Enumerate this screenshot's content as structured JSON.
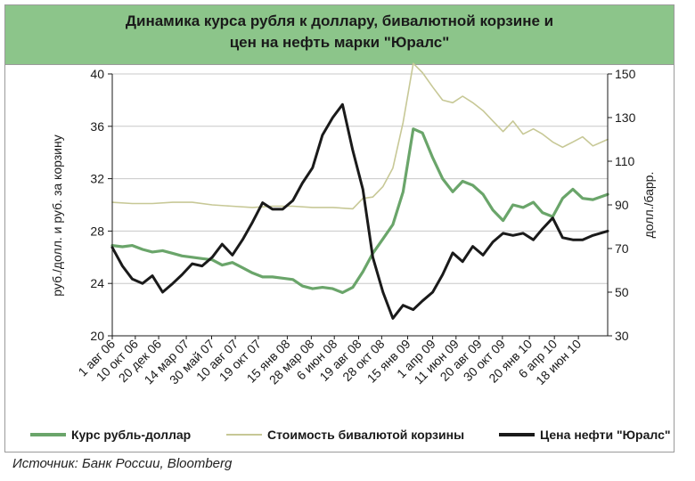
{
  "source": "Источник: Банк России, Bloomberg",
  "colors": {
    "title_band": "#8cc58a",
    "rub_usd": "#6aa56a",
    "basket": "#c7c896",
    "oil": "#1a1a1a",
    "grid": "#c8c8c8"
  },
  "chart_data": {
    "type": "line",
    "title": "Динамика курса рубля к доллару, бивалютной корзине и\nцен на нефть марки \"Юралс\"",
    "ylabel_left": "руб./долл. и руб. за корзину",
    "ylabel_right": "долл./барр.",
    "ylim_left": [
      20,
      40
    ],
    "ylim_right": [
      30,
      150
    ],
    "yticks_left": [
      20,
      24,
      28,
      32,
      36,
      40
    ],
    "yticks_right": [
      30,
      50,
      70,
      90,
      110,
      130,
      150
    ],
    "x_start": "2006-08-01",
    "x_end": "2010-09-15",
    "x_tick_labels": [
      {
        "date": "2006-08-01",
        "label": "1 авг 06"
      },
      {
        "date": "2006-10-10",
        "label": "10 окт 06"
      },
      {
        "date": "2006-12-20",
        "label": "20 дек 06"
      },
      {
        "date": "2007-03-14",
        "label": "14 мар 07"
      },
      {
        "date": "2007-05-30",
        "label": "30 май 07"
      },
      {
        "date": "2007-08-10",
        "label": "10 авг 07"
      },
      {
        "date": "2007-10-19",
        "label": "19 окт 07"
      },
      {
        "date": "2008-01-15",
        "label": "15 янв 08"
      },
      {
        "date": "2008-03-28",
        "label": "28 мар 08"
      },
      {
        "date": "2008-06-06",
        "label": "6 июн 08"
      },
      {
        "date": "2008-08-19",
        "label": "19 авг 08"
      },
      {
        "date": "2008-10-28",
        "label": "28 окт 08"
      },
      {
        "date": "2009-01-15",
        "label": "15 янв 09"
      },
      {
        "date": "2009-04-01",
        "label": "1 апр 09"
      },
      {
        "date": "2009-06-11",
        "label": "11 июн 09"
      },
      {
        "date": "2009-08-20",
        "label": "20 авг 09"
      },
      {
        "date": "2009-10-30",
        "label": "30 окт 09"
      },
      {
        "date": "2010-01-20",
        "label": "20 янв 10"
      },
      {
        "date": "2010-04-06",
        "label": "6 апр 10"
      },
      {
        "date": "2010-06-18",
        "label": "18 июн 10"
      }
    ],
    "grid": true,
    "legend_position": "bottom",
    "series": [
      {
        "name": "Курс рубль-доллар",
        "axis": "left",
        "points": [
          [
            "2006-08-01",
            26.9
          ],
          [
            "2006-09-01",
            26.8
          ],
          [
            "2006-10-01",
            26.9
          ],
          [
            "2006-11-01",
            26.6
          ],
          [
            "2006-12-01",
            26.4
          ],
          [
            "2007-01-01",
            26.5
          ],
          [
            "2007-02-01",
            26.3
          ],
          [
            "2007-03-01",
            26.1
          ],
          [
            "2007-04-01",
            26.0
          ],
          [
            "2007-05-01",
            25.9
          ],
          [
            "2007-06-01",
            25.8
          ],
          [
            "2007-07-01",
            25.4
          ],
          [
            "2007-08-01",
            25.6
          ],
          [
            "2007-09-01",
            25.2
          ],
          [
            "2007-10-01",
            24.8
          ],
          [
            "2007-11-01",
            24.5
          ],
          [
            "2007-12-01",
            24.5
          ],
          [
            "2008-01-01",
            24.4
          ],
          [
            "2008-02-01",
            24.3
          ],
          [
            "2008-03-01",
            23.8
          ],
          [
            "2008-04-01",
            23.6
          ],
          [
            "2008-05-01",
            23.7
          ],
          [
            "2008-06-01",
            23.6
          ],
          [
            "2008-07-01",
            23.3
          ],
          [
            "2008-08-01",
            23.7
          ],
          [
            "2008-09-01",
            24.9
          ],
          [
            "2008-10-01",
            26.3
          ],
          [
            "2008-11-01",
            27.4
          ],
          [
            "2008-12-01",
            28.5
          ],
          [
            "2009-01-01",
            31.0
          ],
          [
            "2009-02-01",
            35.8
          ],
          [
            "2009-03-01",
            35.5
          ],
          [
            "2009-04-01",
            33.6
          ],
          [
            "2009-05-01",
            32.0
          ],
          [
            "2009-06-01",
            31.0
          ],
          [
            "2009-07-01",
            31.8
          ],
          [
            "2009-08-01",
            31.5
          ],
          [
            "2009-09-01",
            30.8
          ],
          [
            "2009-10-01",
            29.6
          ],
          [
            "2009-11-01",
            28.8
          ],
          [
            "2009-12-01",
            30.0
          ],
          [
            "2010-01-01",
            29.8
          ],
          [
            "2010-02-01",
            30.2
          ],
          [
            "2010-03-01",
            29.4
          ],
          [
            "2010-04-01",
            29.1
          ],
          [
            "2010-05-01",
            30.5
          ],
          [
            "2010-06-01",
            31.2
          ],
          [
            "2010-07-01",
            30.5
          ],
          [
            "2010-08-01",
            30.4
          ],
          [
            "2010-09-15",
            30.8
          ]
        ]
      },
      {
        "name": "Стоимость бивалютой корзины",
        "axis": "left",
        "points": [
          [
            "2006-08-01",
            30.2
          ],
          [
            "2006-10-01",
            30.1
          ],
          [
            "2006-12-01",
            30.1
          ],
          [
            "2007-02-01",
            30.2
          ],
          [
            "2007-04-01",
            30.2
          ],
          [
            "2007-06-01",
            30.0
          ],
          [
            "2007-08-01",
            29.9
          ],
          [
            "2007-10-01",
            29.8
          ],
          [
            "2007-12-01",
            29.9
          ],
          [
            "2008-02-01",
            29.9
          ],
          [
            "2008-04-01",
            29.8
          ],
          [
            "2008-06-01",
            29.8
          ],
          [
            "2008-08-01",
            29.7
          ],
          [
            "2008-09-01",
            30.5
          ],
          [
            "2008-10-01",
            30.6
          ],
          [
            "2008-11-01",
            31.4
          ],
          [
            "2008-12-01",
            32.8
          ],
          [
            "2009-01-01",
            36.3
          ],
          [
            "2009-02-01",
            40.8
          ],
          [
            "2009-03-01",
            40.1
          ],
          [
            "2009-04-01",
            39.0
          ],
          [
            "2009-05-01",
            38.0
          ],
          [
            "2009-06-01",
            37.8
          ],
          [
            "2009-07-01",
            38.3
          ],
          [
            "2009-08-01",
            37.8
          ],
          [
            "2009-09-01",
            37.2
          ],
          [
            "2009-10-01",
            36.4
          ],
          [
            "2009-11-01",
            35.6
          ],
          [
            "2009-12-01",
            36.4
          ],
          [
            "2010-01-01",
            35.4
          ],
          [
            "2010-02-01",
            35.8
          ],
          [
            "2010-03-01",
            35.4
          ],
          [
            "2010-04-01",
            34.8
          ],
          [
            "2010-05-01",
            34.4
          ],
          [
            "2010-06-01",
            34.8
          ],
          [
            "2010-07-01",
            35.2
          ],
          [
            "2010-08-01",
            34.5
          ],
          [
            "2010-09-15",
            35.0
          ]
        ]
      },
      {
        "name": "Цена нефти \"Юралс\"",
        "axis": "right",
        "points": [
          [
            "2006-08-01",
            70.5
          ],
          [
            "2006-09-01",
            62.0
          ],
          [
            "2006-10-01",
            56.0
          ],
          [
            "2006-11-01",
            54.0
          ],
          [
            "2006-12-01",
            57.5
          ],
          [
            "2007-01-01",
            50.0
          ],
          [
            "2007-02-01",
            54.0
          ],
          [
            "2007-03-01",
            58.0
          ],
          [
            "2007-04-01",
            63.0
          ],
          [
            "2007-05-01",
            62.0
          ],
          [
            "2007-06-01",
            66.0
          ],
          [
            "2007-07-01",
            72.0
          ],
          [
            "2007-08-01",
            67.0
          ],
          [
            "2007-09-01",
            74.0
          ],
          [
            "2007-10-01",
            82.0
          ],
          [
            "2007-11-01",
            91.0
          ],
          [
            "2007-12-01",
            88.0
          ],
          [
            "2008-01-01",
            88.0
          ],
          [
            "2008-02-01",
            92.0
          ],
          [
            "2008-03-01",
            100.0
          ],
          [
            "2008-04-01",
            107.0
          ],
          [
            "2008-05-01",
            122.0
          ],
          [
            "2008-06-01",
            130.0
          ],
          [
            "2008-07-01",
            136.0
          ],
          [
            "2008-08-01",
            115.0
          ],
          [
            "2008-09-01",
            97.0
          ],
          [
            "2008-10-01",
            66.0
          ],
          [
            "2008-11-01",
            50.0
          ],
          [
            "2008-12-01",
            38.0
          ],
          [
            "2009-01-01",
            44.0
          ],
          [
            "2009-02-01",
            42.0
          ],
          [
            "2009-03-01",
            46.0
          ],
          [
            "2009-04-01",
            50.0
          ],
          [
            "2009-05-01",
            58.0
          ],
          [
            "2009-06-01",
            68.0
          ],
          [
            "2009-07-01",
            64.0
          ],
          [
            "2009-08-01",
            71.0
          ],
          [
            "2009-09-01",
            67.0
          ],
          [
            "2009-10-01",
            73.0
          ],
          [
            "2009-11-01",
            77.0
          ],
          [
            "2009-12-01",
            76.0
          ],
          [
            "2010-01-01",
            77.0
          ],
          [
            "2010-02-01",
            74.0
          ],
          [
            "2010-03-01",
            79.0
          ],
          [
            "2010-04-01",
            84.0
          ],
          [
            "2010-05-01",
            75.0
          ],
          [
            "2010-06-01",
            74.0
          ],
          [
            "2010-07-01",
            74.0
          ],
          [
            "2010-08-01",
            76.0
          ],
          [
            "2010-09-15",
            78.0
          ]
        ]
      }
    ]
  }
}
